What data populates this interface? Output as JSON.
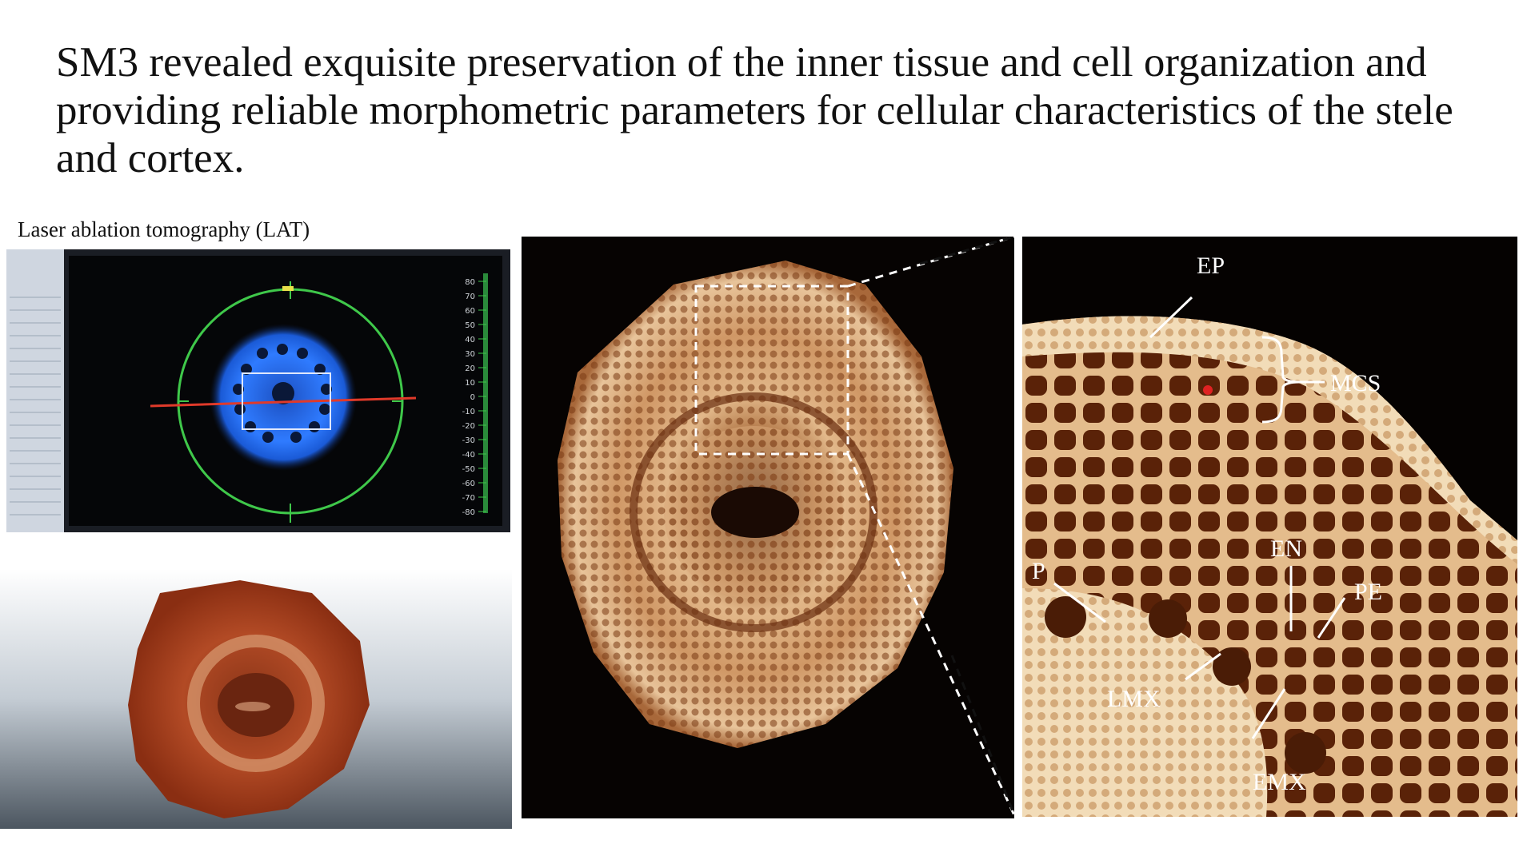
{
  "slide": {
    "title": "SM3 revealed exquisite preservation of the inner tissue and cell organization and providing reliable morphometric parameters for cellular characteristics of the stele and cortex.",
    "lat_label": "Laser ablation tomography (LAT)"
  },
  "lat_screen": {
    "scale_ticks": [
      "80",
      "70",
      "60",
      "50",
      "40",
      "30",
      "20",
      "10",
      "0",
      "-10",
      "-20",
      "-30",
      "-40",
      "-50",
      "-60",
      "-70",
      "-80"
    ]
  },
  "zoom_labels": {
    "ep": "EP",
    "mcs": "MCS",
    "en": "EN",
    "p": "P",
    "pe": "PE",
    "lmx": "LMX",
    "emx": "EMX"
  },
  "colors": {
    "scope_ring": "#3fc84a",
    "laser_line": "#e03a2a",
    "sample_blue": "#2f7bff",
    "tissue_light": "#f0d2a8",
    "tissue_dark": "#6a2a0e",
    "background_dark": "#060302"
  }
}
